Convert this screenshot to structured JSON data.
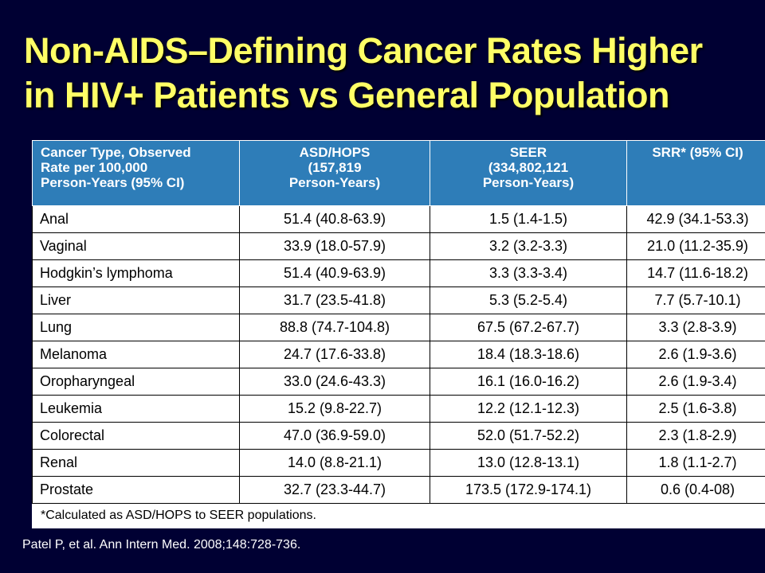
{
  "slide": {
    "title_line1": "Non-AIDS–Defining Cancer Rates Higher",
    "title_line2": "in HIV+ Patients vs General Population"
  },
  "table": {
    "headers": [
      [
        "Cancer Type, Observed",
        "Rate per 100,000",
        "Person-Years (95% CI)"
      ],
      [
        "ASD/HOPS",
        "(157,819",
        "Person-Years)"
      ],
      [
        "SEER",
        "(334,802,121",
        "Person-Years)"
      ],
      [
        "SRR* (95% CI)"
      ]
    ],
    "rows": [
      [
        "Anal",
        "51.4 (40.8-63.9)",
        "1.5 (1.4-1.5)",
        "42.9 (34.1-53.3)"
      ],
      [
        "Vaginal",
        "33.9 (18.0-57.9)",
        "3.2 (3.2-3.3)",
        "21.0 (11.2-35.9)"
      ],
      [
        "Hodgkin’s lymphoma",
        "51.4 (40.9-63.9)",
        "3.3 (3.3-3.4)",
        "14.7 (11.6-18.2)"
      ],
      [
        "Liver",
        "31.7 (23.5-41.8)",
        "5.3 (5.2-5.4)",
        "7.7 (5.7-10.1)"
      ],
      [
        "Lung",
        "88.8 (74.7-104.8)",
        "67.5 (67.2-67.7)",
        "3.3 (2.8-3.9)"
      ],
      [
        "Melanoma",
        "24.7 (17.6-33.8)",
        "18.4 (18.3-18.6)",
        "2.6 (1.9-3.6)"
      ],
      [
        "Oropharyngeal",
        "33.0 (24.6-43.3)",
        "16.1 (16.0-16.2)",
        "2.6 (1.9-3.4)"
      ],
      [
        "Leukemia",
        "15.2 (9.8-22.7)",
        "12.2 (12.1-12.3)",
        "2.5 (1.6-3.8)"
      ],
      [
        "Colorectal",
        "47.0 (36.9-59.0)",
        "52.0 (51.7-52.2)",
        "2.3 (1.8-2.9)"
      ],
      [
        "Renal",
        "14.0 (8.8-21.1)",
        "13.0 (12.8-13.1)",
        "1.8 (1.1-2.7)"
      ],
      [
        "Prostate",
        "32.7 (23.3-44.7)",
        "173.5 (172.9-174.1)",
        "0.6 (0.4-08)"
      ]
    ],
    "footnote": "*Calculated as ASD/HOPS to SEER populations."
  },
  "citation": "Patel P, et al. Ann Intern Med. 2008;148:728-736.",
  "colors": {
    "background": "#000033",
    "title": "#FFFF66",
    "header_fill": "#2E7DB8",
    "cell_fill": "#FFFFFF"
  }
}
